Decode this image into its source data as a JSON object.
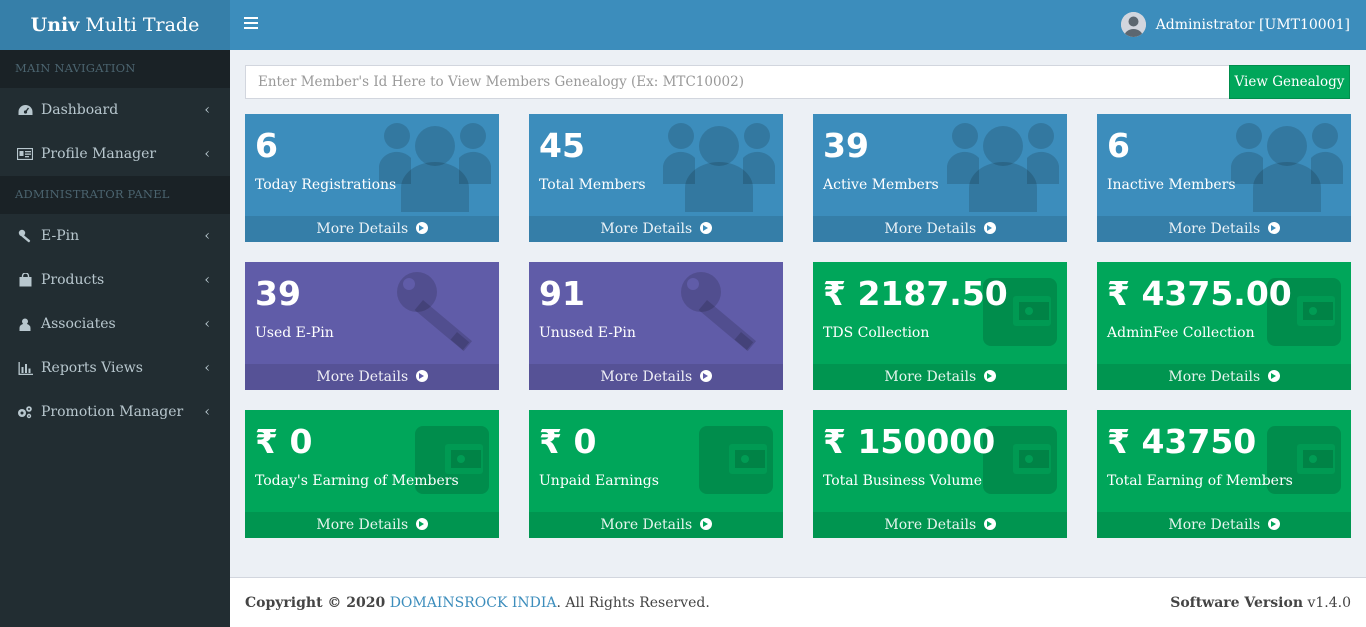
{
  "app": {
    "logo_bold": "Univ",
    "logo_rest": "Multi Trade"
  },
  "sidebar": {
    "header_main": "MAIN NAVIGATION",
    "header_admin": "ADMINISTRATOR PANEL",
    "items": [
      {
        "label": "Dashboard",
        "icon": "dashboard-icon"
      },
      {
        "label": "Profile Manager",
        "icon": "id-card-icon"
      },
      {
        "label": "E-Pin",
        "icon": "key-icon"
      },
      {
        "label": "Products",
        "icon": "shopping-bag-icon"
      },
      {
        "label": "Associates",
        "icon": "user-icon"
      },
      {
        "label": "Reports Views",
        "icon": "bar-chart-icon"
      },
      {
        "label": "Promotion Manager",
        "icon": "gears-icon"
      }
    ]
  },
  "topbar": {
    "user_label": "Administrator [UMT10001]"
  },
  "search": {
    "placeholder": "Enter Member's Id Here to View Members Genealogy (Ex: MTC10002)",
    "button_label": "View Genealogy"
  },
  "boxes": [
    {
      "value": "6",
      "label": "Today Registrations",
      "more": "More Details",
      "color": "#3c8dbc",
      "icon": "users-icon"
    },
    {
      "value": "45",
      "label": "Total Members",
      "more": "More Details",
      "color": "#3c8dbc",
      "icon": "users-icon"
    },
    {
      "value": "39",
      "label": "Active Members",
      "more": "More Details",
      "color": "#3c8dbc",
      "icon": "users-icon"
    },
    {
      "value": "6",
      "label": "Inactive Members",
      "more": "More Details",
      "color": "#3c8dbc",
      "icon": "users-icon"
    },
    {
      "value": "39",
      "label": "Used E-Pin",
      "more": "More Details",
      "color": "#605ca8",
      "icon": "key-icon"
    },
    {
      "value": "91",
      "label": "Unused E-Pin",
      "more": "More Details",
      "color": "#605ca8",
      "icon": "key-icon"
    },
    {
      "value": "₹ 2187.50",
      "label": "TDS Collection",
      "more": "More Details",
      "color": "#00a65a",
      "icon": "wallet-icon"
    },
    {
      "value": "₹ 4375.00",
      "label": "AdminFee Collection",
      "more": "More Details",
      "color": "#00a65a",
      "icon": "wallet-icon"
    },
    {
      "value": "₹ 0",
      "label": "Today's Earning of Members",
      "more": "More Details",
      "color": "#00a65a",
      "icon": "wallet-icon"
    },
    {
      "value": "₹ 0",
      "label": "Unpaid Earnings",
      "more": "More Details",
      "color": "#00a65a",
      "icon": "wallet-icon"
    },
    {
      "value": "₹ 150000",
      "label": "Total Business Volume",
      "more": "More Details",
      "color": "#00a65a",
      "icon": "wallet-icon"
    },
    {
      "value": "₹ 43750",
      "label": "Total Earning of Members",
      "more": "More Details",
      "color": "#00a65a",
      "icon": "wallet-icon"
    }
  ],
  "footer": {
    "copyright_prefix": "Copyright © 2020",
    "company": "DOMAINSROCK INDIA",
    "suffix": ". All Rights Reserved.",
    "version_label": "Software Version",
    "version": "v1.4.0"
  }
}
